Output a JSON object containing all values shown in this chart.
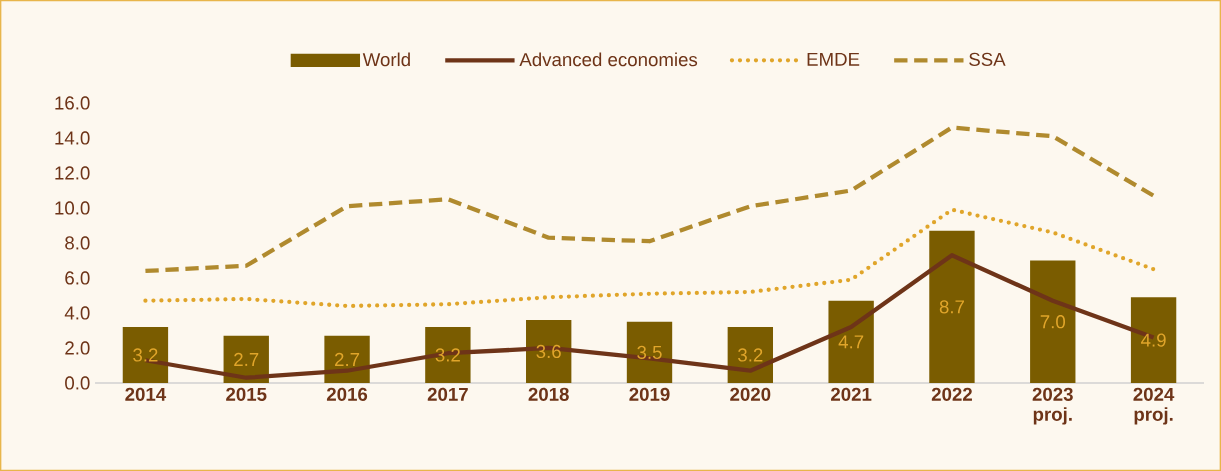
{
  "chart_data": {
    "type": "bar",
    "categories": [
      "2014",
      "2015",
      "2016",
      "2017",
      "2018",
      "2019",
      "2020",
      "2021",
      "2022",
      "2023 proj.",
      "2024 proj."
    ],
    "series": [
      {
        "name": "World",
        "color": "#7a5c00",
        "values": [
          3.2,
          2.7,
          2.7,
          3.2,
          3.6,
          3.5,
          3.2,
          4.7,
          8.7,
          7.0,
          4.9
        ],
        "value_labels": [
          "3.2",
          "2.7",
          "2.7",
          "3.2",
          "3.6",
          "3.5",
          "3.2",
          "4.7",
          "8.7",
          "7.0",
          "4.9"
        ]
      },
      {
        "name": "Advanced economies",
        "type": "line",
        "color": "#6e3418",
        "line_style": "solid",
        "values": [
          1.3,
          0.3,
          0.7,
          1.7,
          2.0,
          1.4,
          0.7,
          3.2,
          7.3,
          4.7,
          2.6
        ]
      },
      {
        "name": "EMDE",
        "type": "line",
        "color": "#e0a52a",
        "line_style": "dotted",
        "values": [
          4.7,
          4.8,
          4.4,
          4.5,
          4.9,
          5.1,
          5.2,
          5.9,
          9.9,
          8.6,
          6.5
        ]
      },
      {
        "name": "SSA",
        "type": "line",
        "color": "#b08a2e",
        "line_style": "dashed",
        "values": [
          6.4,
          6.7,
          10.1,
          10.5,
          8.3,
          8.1,
          10.1,
          11.0,
          14.6,
          14.1,
          10.7
        ]
      }
    ],
    "ylim": [
      0,
      16
    ],
    "yticks": [
      {
        "value": 0,
        "label": "0.0"
      },
      {
        "value": 2,
        "label": "2.0"
      },
      {
        "value": 4,
        "label": "4.0"
      },
      {
        "value": 6,
        "label": "6.0"
      },
      {
        "value": 8,
        "label": "8.0"
      },
      {
        "value": 10,
        "label": "10.0"
      },
      {
        "value": 12,
        "label": "12.0"
      },
      {
        "value": 14,
        "label": "14.0"
      },
      {
        "value": 16,
        "label": "16.0"
      }
    ],
    "grid": false,
    "legend": "top",
    "marker": "none"
  }
}
